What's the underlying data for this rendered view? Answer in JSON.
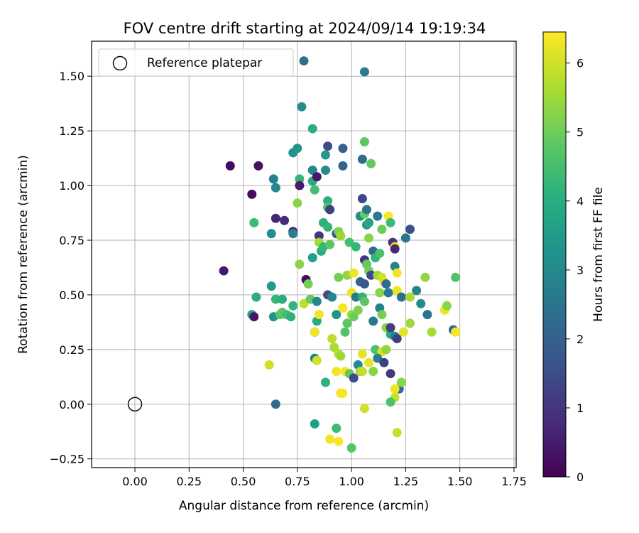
{
  "chart_data": {
    "type": "scatter",
    "title": "FOV centre drift starting at 2024/09/14 19:19:34",
    "xlabel": "Angular distance from reference (arcmin)",
    "ylabel": "Rotation from reference (arcmin)",
    "xlim": [
      -0.2,
      1.76
    ],
    "ylim": [
      -0.29,
      1.66
    ],
    "xticks": [
      "0.00",
      "0.25",
      "0.50",
      "0.75",
      "1.00",
      "1.25",
      "1.50",
      "1.75"
    ],
    "yticks": [
      "−0.25",
      "0.00",
      "0.25",
      "0.50",
      "0.75",
      "1.00",
      "1.25",
      "1.50"
    ],
    "grid": true,
    "legend": {
      "position": "upper-left",
      "entries": [
        {
          "label": "Reference platepar",
          "marker": "open-circle"
        }
      ]
    },
    "reference_point": {
      "x": 0.0,
      "y": 0.0
    },
    "colorbar": {
      "label": "Hours from first FF file",
      "range": [
        0,
        6.45
      ],
      "ticks": [
        "0",
        "1",
        "2",
        "3",
        "4",
        "5",
        "6"
      ],
      "colormap": "viridis"
    },
    "points": [
      [
        0.78,
        1.57,
        2.4
      ],
      [
        1.06,
        1.52,
        2.7
      ],
      [
        0.77,
        1.36,
        3.2
      ],
      [
        0.82,
        1.26,
        4.0
      ],
      [
        0.73,
        1.15,
        3.3
      ],
      [
        0.75,
        1.17,
        3.4
      ],
      [
        0.89,
        1.18,
        1.5
      ],
      [
        0.96,
        1.17,
        2.0
      ],
      [
        1.06,
        1.2,
        4.8
      ],
      [
        0.88,
        1.14,
        3.5
      ],
      [
        0.44,
        1.09,
        0.2
      ],
      [
        0.57,
        1.09,
        0.3
      ],
      [
        0.82,
        1.07,
        3.0
      ],
      [
        0.88,
        1.07,
        3.1
      ],
      [
        0.96,
        1.09,
        2.1
      ],
      [
        1.05,
        1.12,
        2.3
      ],
      [
        1.09,
        1.1,
        4.9
      ],
      [
        0.64,
        1.03,
        2.9
      ],
      [
        0.76,
        1.03,
        4.3
      ],
      [
        0.82,
        1.02,
        3.9
      ],
      [
        0.84,
        1.04,
        0.4
      ],
      [
        0.76,
        1.0,
        0.5
      ],
      [
        0.65,
        0.99,
        3.0
      ],
      [
        0.83,
        0.98,
        4.5
      ],
      [
        0.54,
        0.96,
        0.2
      ],
      [
        0.89,
        0.93,
        4.1
      ],
      [
        1.05,
        0.94,
        1.4
      ],
      [
        0.89,
        0.9,
        4.7
      ],
      [
        0.9,
        0.89,
        1.2
      ],
      [
        0.75,
        0.92,
        5.3
      ],
      [
        1.04,
        0.86,
        3.2
      ],
      [
        1.06,
        0.87,
        4.9
      ],
      [
        1.07,
        0.89,
        2.5
      ],
      [
        1.12,
        0.86,
        2.6
      ],
      [
        1.17,
        0.86,
        6.4
      ],
      [
        1.18,
        0.83,
        4.4
      ],
      [
        0.55,
        0.83,
        4.4
      ],
      [
        0.65,
        0.85,
        0.7
      ],
      [
        0.69,
        0.84,
        0.8
      ],
      [
        0.87,
        0.83,
        4.1
      ],
      [
        0.89,
        0.81,
        4.2
      ],
      [
        0.93,
        0.78,
        1.8
      ],
      [
        0.94,
        0.79,
        5.2
      ],
      [
        0.99,
        0.74,
        4.5
      ],
      [
        1.02,
        0.72,
        4.3
      ],
      [
        1.07,
        0.82,
        3.5
      ],
      [
        1.08,
        0.83,
        3.8
      ],
      [
        1.14,
        0.8,
        5.0
      ],
      [
        1.27,
        0.8,
        1.6
      ],
      [
        1.25,
        0.76,
        2.5
      ],
      [
        0.63,
        0.78,
        3.2
      ],
      [
        0.73,
        0.79,
        0.6
      ],
      [
        0.73,
        0.78,
        2.9
      ],
      [
        0.85,
        0.77,
        1.0
      ],
      [
        0.85,
        0.74,
        5.6
      ],
      [
        0.86,
        0.7,
        4.0
      ],
      [
        0.87,
        0.72,
        4.3
      ],
      [
        0.9,
        0.73,
        4.8
      ],
      [
        0.95,
        0.77,
        5.5
      ],
      [
        1.08,
        0.76,
        5.3
      ],
      [
        1.1,
        0.7,
        2.2
      ],
      [
        1.11,
        0.67,
        4.2
      ],
      [
        1.06,
        0.66,
        1.0
      ],
      [
        1.13,
        0.69,
        4.6
      ],
      [
        1.19,
        0.74,
        0.9
      ],
      [
        1.2,
        0.72,
        6.2
      ],
      [
        1.2,
        0.71,
        0.7
      ],
      [
        0.82,
        0.67,
        3.6
      ],
      [
        0.76,
        0.64,
        5.3
      ],
      [
        0.41,
        0.61,
        0.4
      ],
      [
        0.79,
        0.57,
        0.2
      ],
      [
        0.8,
        0.55,
        5.1
      ],
      [
        0.94,
        0.58,
        5.1
      ],
      [
        0.98,
        0.59,
        5.4
      ],
      [
        1.01,
        0.6,
        6.3
      ],
      [
        1.04,
        0.56,
        2.0
      ],
      [
        1.06,
        0.55,
        1.8
      ],
      [
        1.07,
        0.64,
        4.9
      ],
      [
        1.08,
        0.61,
        5.1
      ],
      [
        1.09,
        0.59,
        1.4
      ],
      [
        1.12,
        0.59,
        5.5
      ],
      [
        1.14,
        0.58,
        6.0
      ],
      [
        1.15,
        0.56,
        6.1
      ],
      [
        1.16,
        0.55,
        2.2
      ],
      [
        1.2,
        0.63,
        2.9
      ],
      [
        1.21,
        0.6,
        6.3
      ],
      [
        1.34,
        0.58,
        5.4
      ],
      [
        1.48,
        0.58,
        4.7
      ],
      [
        0.56,
        0.49,
        4.0
      ],
      [
        0.63,
        0.54,
        3.5
      ],
      [
        0.65,
        0.48,
        4.3
      ],
      [
        0.68,
        0.48,
        4.0
      ],
      [
        0.73,
        0.45,
        4.2
      ],
      [
        0.78,
        0.46,
        5.8
      ],
      [
        0.81,
        0.48,
        4.9
      ],
      [
        0.89,
        0.5,
        1.5
      ],
      [
        0.91,
        0.49,
        3.0
      ],
      [
        0.84,
        0.47,
        3.0
      ],
      [
        1.0,
        0.51,
        6.3
      ],
      [
        1.02,
        0.49,
        2.7
      ],
      [
        1.05,
        0.49,
        4.1
      ],
      [
        1.06,
        0.47,
        4.8
      ],
      [
        1.13,
        0.51,
        5.3
      ],
      [
        1.17,
        0.51,
        2.6
      ],
      [
        1.21,
        0.52,
        6.3
      ],
      [
        1.23,
        0.49,
        2.4
      ],
      [
        1.27,
        0.49,
        5.6
      ],
      [
        1.3,
        0.52,
        2.9
      ],
      [
        1.32,
        0.46,
        3.1
      ],
      [
        1.35,
        0.41,
        2.5
      ],
      [
        1.43,
        0.43,
        6.3
      ],
      [
        1.44,
        0.45,
        5.3
      ],
      [
        0.54,
        0.41,
        3.8
      ],
      [
        0.55,
        0.4,
        0.4
      ],
      [
        0.64,
        0.4,
        3.3
      ],
      [
        0.67,
        0.41,
        4.7
      ],
      [
        0.68,
        0.42,
        4.8
      ],
      [
        0.7,
        0.41,
        4.5
      ],
      [
        0.72,
        0.4,
        4.1
      ],
      [
        0.83,
        0.33,
        0.4
      ],
      [
        0.84,
        0.38,
        3.9
      ],
      [
        0.85,
        0.41,
        6.3
      ],
      [
        0.93,
        0.41,
        3.3
      ],
      [
        0.96,
        0.44,
        5.9
      ],
      [
        0.96,
        0.44,
        6.4
      ],
      [
        0.98,
        0.37,
        4.8
      ],
      [
        1.0,
        0.41,
        5.5
      ],
      [
        1.01,
        0.4,
        5.0
      ],
      [
        1.03,
        0.43,
        5.2
      ],
      [
        1.1,
        0.38,
        2.6
      ],
      [
        1.13,
        0.44,
        2.8
      ],
      [
        1.14,
        0.41,
        5.1
      ],
      [
        1.16,
        0.35,
        5.3
      ],
      [
        1.18,
        0.32,
        4.0
      ],
      [
        1.18,
        0.35,
        1.2
      ],
      [
        1.2,
        0.31,
        2.8
      ],
      [
        1.21,
        0.3,
        1.2
      ],
      [
        1.24,
        0.33,
        6.2
      ],
      [
        1.27,
        0.37,
        5.5
      ],
      [
        1.37,
        0.33,
        5.6
      ],
      [
        1.47,
        0.34,
        2.1
      ],
      [
        1.48,
        0.33,
        6.4
      ],
      [
        0.83,
        0.33,
        6.3
      ],
      [
        0.91,
        0.3,
        5.8
      ],
      [
        0.97,
        0.33,
        4.7
      ],
      [
        0.92,
        0.26,
        5.6
      ],
      [
        0.94,
        0.23,
        5.7
      ],
      [
        0.95,
        0.22,
        5.5
      ],
      [
        1.05,
        0.23,
        6.2
      ],
      [
        1.11,
        0.25,
        4.6
      ],
      [
        1.14,
        0.24,
        6.1
      ],
      [
        1.16,
        0.25,
        5.4
      ],
      [
        1.12,
        0.21,
        2.9
      ],
      [
        1.15,
        0.19,
        1.2
      ],
      [
        1.18,
        0.14,
        1.1
      ],
      [
        0.62,
        0.18,
        6.0
      ],
      [
        0.83,
        0.21,
        2.8
      ],
      [
        0.84,
        0.2,
        6.0
      ],
      [
        0.88,
        0.1,
        4.1
      ],
      [
        0.93,
        0.15,
        6.3
      ],
      [
        0.97,
        0.15,
        6.4
      ],
      [
        0.99,
        0.14,
        4.9
      ],
      [
        1.01,
        0.12,
        1.5
      ],
      [
        1.03,
        0.18,
        3.1
      ],
      [
        1.04,
        0.15,
        5.5
      ],
      [
        1.05,
        0.15,
        5.9
      ],
      [
        1.08,
        0.19,
        6.2
      ],
      [
        1.1,
        0.15,
        5.3
      ],
      [
        1.22,
        0.07,
        2.3
      ],
      [
        1.23,
        0.1,
        5.3
      ],
      [
        1.2,
        0.07,
        6.3
      ],
      [
        1.2,
        0.03,
        5.9
      ],
      [
        1.18,
        0.01,
        4.6
      ],
      [
        0.65,
        0.0,
        2.3
      ],
      [
        0.95,
        0.05,
        6.3
      ],
      [
        0.96,
        0.05,
        6.4
      ],
      [
        1.06,
        -0.02,
        6.0
      ],
      [
        0.83,
        -0.09,
        3.6
      ],
      [
        0.9,
        -0.16,
        6.3
      ],
      [
        0.93,
        -0.11,
        4.4
      ],
      [
        0.94,
        -0.17,
        6.4
      ],
      [
        1.0,
        -0.2,
        4.7
      ],
      [
        1.21,
        -0.13,
        5.9
      ]
    ]
  }
}
